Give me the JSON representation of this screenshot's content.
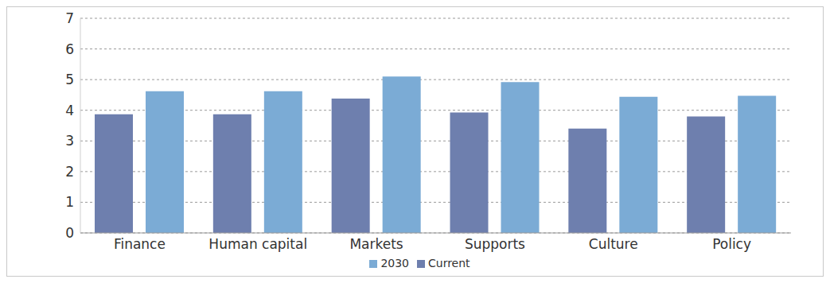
{
  "chart_data": {
    "type": "bar",
    "categories": [
      "Finance",
      "Human capital",
      "Markets",
      "Supports",
      "Culture",
      "Policy"
    ],
    "series": [
      {
        "name": "Current",
        "color": "#6e7fae",
        "values": [
          3.87,
          3.87,
          4.38,
          3.93,
          3.4,
          3.8
        ]
      },
      {
        "name": "2030",
        "color": "#7babd5",
        "values": [
          4.62,
          4.62,
          5.1,
          4.92,
          4.44,
          4.47
        ]
      }
    ],
    "ylim": [
      0,
      7
    ],
    "yticks": [
      0,
      1,
      2,
      3,
      4,
      5,
      6,
      7
    ],
    "grid": true,
    "legend": "bottom"
  }
}
